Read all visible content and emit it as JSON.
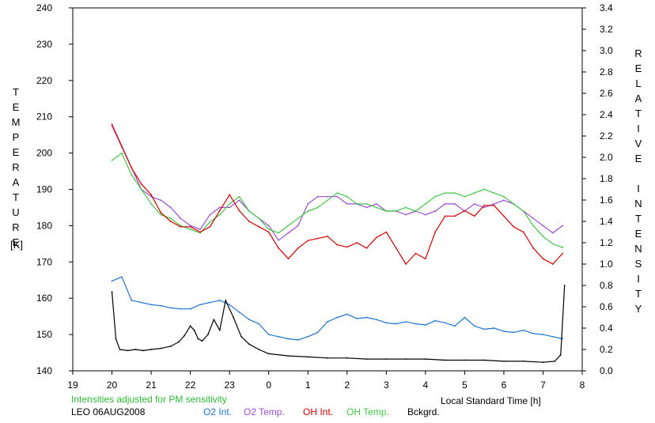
{
  "chart_data": {
    "type": "line",
    "title": "",
    "xlabel": "Local Standard Time [h]",
    "ylabel_left": "TEMPERATURE",
    "ylabel_left_unit": "[K]",
    "ylabel_right": "RELATIVE INTENSITY",
    "xlim": [
      19,
      32
    ],
    "ylim_left": [
      140,
      240
    ],
    "ylim_right": [
      0.0,
      3.4
    ],
    "x_ticks": [
      19,
      20,
      21,
      22,
      23,
      24,
      25,
      26,
      27,
      28,
      29,
      30,
      31,
      32
    ],
    "x_tick_labels": [
      "19",
      "20",
      "21",
      "22",
      "23",
      "0",
      "1",
      "2",
      "3",
      "4",
      "5",
      "6",
      "7",
      "8"
    ],
    "y_left_ticks": [
      140,
      150,
      160,
      170,
      180,
      190,
      200,
      210,
      220,
      230,
      240
    ],
    "y_right_ticks": [
      0.0,
      0.2,
      0.4,
      0.6,
      0.8,
      1.0,
      1.2,
      1.4,
      1.6,
      1.8,
      2.0,
      2.2,
      2.4,
      2.6,
      2.8,
      3.0,
      3.2,
      3.4
    ],
    "y_right_tick_labels": [
      "0.0",
      "0.2",
      "0.4",
      "0.6",
      "0.8",
      "1.0",
      "1.2",
      "1.4",
      "1.6",
      "1.8",
      "2.0",
      "2.2",
      "2.4",
      "2.6",
      "2.8",
      "3.0",
      "3.2",
      "3.4"
    ],
    "note": "Intensities adjusted for PM sensitivity",
    "station": "LEO 06AUG2008",
    "series": [
      {
        "name": "O2 Int.",
        "axis": "right",
        "color": "#1e73d2",
        "x": [
          20.0,
          20.25,
          20.5,
          20.75,
          21.0,
          21.25,
          21.5,
          21.75,
          22.0,
          22.25,
          22.5,
          22.75,
          23.0,
          23.25,
          23.5,
          23.75,
          24.0,
          24.25,
          24.5,
          24.75,
          25.0,
          25.25,
          25.5,
          25.75,
          26.0,
          26.25,
          26.5,
          26.75,
          27.0,
          27.25,
          27.5,
          27.75,
          28.0,
          28.25,
          28.5,
          28.75,
          29.0,
          29.25,
          29.5,
          29.75,
          30.0,
          30.25,
          30.5,
          30.75,
          31.0,
          31.25,
          31.5
        ],
        "y": [
          0.84,
          0.88,
          0.66,
          0.64,
          0.62,
          0.61,
          0.59,
          0.58,
          0.58,
          0.62,
          0.64,
          0.66,
          0.62,
          0.55,
          0.48,
          0.44,
          0.34,
          0.32,
          0.3,
          0.29,
          0.32,
          0.36,
          0.46,
          0.5,
          0.53,
          0.49,
          0.5,
          0.48,
          0.45,
          0.44,
          0.46,
          0.44,
          0.43,
          0.47,
          0.45,
          0.42,
          0.5,
          0.42,
          0.39,
          0.4,
          0.37,
          0.36,
          0.38,
          0.35,
          0.34,
          0.32,
          0.3
        ]
      },
      {
        "name": "O2 Temp.",
        "axis": "left",
        "color": "#9a4fd0",
        "x": [
          20.0,
          20.25,
          20.5,
          20.75,
          21.0,
          21.25,
          21.5,
          21.75,
          22.0,
          22.25,
          22.5,
          22.75,
          23.0,
          23.25,
          23.5,
          23.75,
          24.0,
          24.25,
          24.5,
          24.75,
          25.0,
          25.25,
          25.5,
          25.75,
          26.0,
          26.25,
          26.5,
          26.75,
          27.0,
          27.25,
          27.5,
          27.75,
          28.0,
          28.25,
          28.5,
          28.75,
          29.0,
          29.25,
          29.5,
          29.75,
          30.0,
          30.25,
          30.5,
          30.75,
          31.0,
          31.25,
          31.5
        ],
        "y": [
          208,
          202,
          196,
          190,
          188,
          187,
          185,
          182,
          180,
          179,
          183,
          185,
          185,
          187,
          184,
          182,
          180,
          176,
          178,
          180,
          186,
          188,
          188,
          188,
          186,
          186,
          185,
          186,
          184,
          184,
          183,
          184,
          183,
          184,
          186,
          186,
          184,
          186,
          185,
          186,
          187,
          186,
          184,
          182,
          180,
          178,
          180
        ]
      },
      {
        "name": "OH Int.",
        "axis": "right",
        "color": "#d40000",
        "x": [
          20.0,
          20.25,
          20.5,
          20.75,
          21.0,
          21.25,
          21.5,
          21.75,
          22.0,
          22.25,
          22.5,
          22.75,
          23.0,
          23.25,
          23.5,
          23.75,
          24.0,
          24.25,
          24.5,
          24.75,
          25.0,
          25.25,
          25.5,
          25.75,
          26.0,
          26.25,
          26.5,
          26.75,
          27.0,
          27.25,
          27.5,
          27.75,
          28.0,
          28.25,
          28.5,
          28.75,
          29.0,
          29.25,
          29.5,
          29.75,
          30.0,
          30.25,
          30.5,
          30.75,
          31.0,
          31.25,
          31.5
        ],
        "y": [
          2.3,
          2.1,
          1.9,
          1.75,
          1.65,
          1.48,
          1.4,
          1.35,
          1.35,
          1.3,
          1.35,
          1.5,
          1.65,
          1.5,
          1.4,
          1.35,
          1.3,
          1.15,
          1.05,
          1.15,
          1.22,
          1.24,
          1.26,
          1.18,
          1.16,
          1.2,
          1.15,
          1.25,
          1.3,
          1.15,
          1.0,
          1.1,
          1.05,
          1.3,
          1.45,
          1.45,
          1.5,
          1.45,
          1.55,
          1.55,
          1.45,
          1.35,
          1.3,
          1.15,
          1.05,
          1.0,
          1.1
        ]
      },
      {
        "name": "OH Temp.",
        "axis": "left",
        "color": "#44c44a",
        "x": [
          20.0,
          20.25,
          20.5,
          20.75,
          21.0,
          21.25,
          21.5,
          21.75,
          22.0,
          22.25,
          22.5,
          22.75,
          23.0,
          23.25,
          23.5,
          23.75,
          24.0,
          24.25,
          24.5,
          24.75,
          25.0,
          25.25,
          25.5,
          25.75,
          26.0,
          26.25,
          26.5,
          26.75,
          27.0,
          27.25,
          27.5,
          27.75,
          28.0,
          28.25,
          28.5,
          28.75,
          29.0,
          29.25,
          29.5,
          29.75,
          30.0,
          30.25,
          30.5,
          30.75,
          31.0,
          31.25,
          31.5
        ],
        "y": [
          198,
          200,
          194,
          190,
          186,
          183,
          182,
          180,
          179,
          178,
          181,
          183,
          186,
          188,
          184,
          182,
          179,
          178,
          180,
          182,
          184,
          185,
          187,
          189,
          188,
          186,
          186,
          185,
          184,
          184,
          185,
          184,
          186,
          188,
          189,
          189,
          188,
          189,
          190,
          189,
          188,
          186,
          184,
          180,
          177,
          175,
          174
        ]
      },
      {
        "name": "Bckgrd.",
        "axis": "right",
        "color": "#000000",
        "x": [
          20.0,
          20.1,
          20.2,
          20.4,
          20.6,
          20.8,
          21.0,
          21.25,
          21.5,
          21.7,
          21.85,
          22.0,
          22.1,
          22.2,
          22.3,
          22.45,
          22.6,
          22.75,
          22.9,
          23.1,
          23.3,
          23.5,
          23.75,
          24.0,
          24.5,
          25.0,
          25.5,
          26.0,
          26.5,
          27.0,
          27.5,
          28.0,
          28.5,
          29.0,
          29.5,
          30.0,
          30.5,
          31.0,
          31.3,
          31.45,
          31.55
        ],
        "y": [
          0.74,
          0.3,
          0.2,
          0.19,
          0.2,
          0.19,
          0.2,
          0.21,
          0.23,
          0.27,
          0.33,
          0.42,
          0.38,
          0.3,
          0.28,
          0.34,
          0.48,
          0.38,
          0.66,
          0.5,
          0.32,
          0.25,
          0.2,
          0.16,
          0.14,
          0.13,
          0.12,
          0.12,
          0.11,
          0.11,
          0.11,
          0.11,
          0.1,
          0.1,
          0.1,
          0.09,
          0.09,
          0.08,
          0.09,
          0.15,
          0.8
        ]
      }
    ]
  }
}
